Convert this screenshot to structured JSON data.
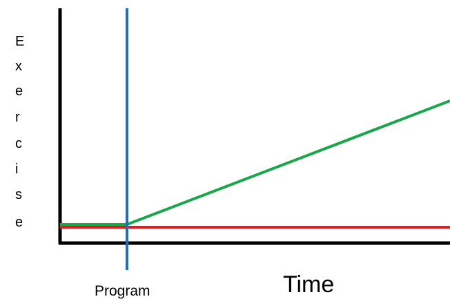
{
  "diagram": {
    "y_axis_label_letters": [
      "E",
      "x",
      "e",
      "r",
      "c",
      "i",
      "s",
      "e"
    ],
    "marker_label": "Program",
    "x_axis_label": "Time",
    "colors": {
      "axes": "#000000",
      "marker": "#1f6fbf",
      "green_line": "#1aa64a",
      "red_line": "#e11b1b"
    }
  }
}
